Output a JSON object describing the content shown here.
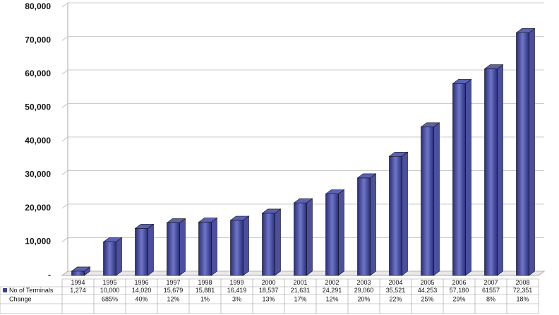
{
  "chart_data": {
    "type": "bar",
    "categories": [
      "1994",
      "1995",
      "1996",
      "1997",
      "1998",
      "1999",
      "2000",
      "2001",
      "2002",
      "2003",
      "2004",
      "2005",
      "2006",
      "2007",
      "2008"
    ],
    "series": [
      {
        "name": "No of Terminals",
        "color": "#3a3f98",
        "values": [
          1274,
          10000,
          14020,
          15679,
          15881,
          16419,
          18537,
          21631,
          24291,
          29060,
          35521,
          44253,
          57180,
          61557,
          72351
        ],
        "value_labels": [
          "1,274",
          "10,000",
          "14,020",
          "15,679",
          "15,881",
          "16,419",
          "18,537",
          "21,631",
          "24,291",
          "29,060",
          "35,521",
          "44,253",
          "57,180",
          "61557",
          "72,351"
        ]
      }
    ],
    "change": {
      "name": "Change",
      "values": [
        null,
        685,
        40,
        12,
        1,
        3,
        13,
        17,
        12,
        20,
        22,
        25,
        29,
        8,
        18
      ],
      "value_labels": [
        null,
        "685%",
        "40%",
        "12%",
        "1%",
        "3%",
        "13%",
        "17%",
        "12%",
        "20%",
        "22%",
        "25%",
        "29%",
        "8%",
        "18%"
      ]
    },
    "ylim": [
      0,
      80000
    ],
    "yticks": [
      {
        "value": 0,
        "label": "-"
      },
      {
        "value": 10000,
        "label": "10,000"
      },
      {
        "value": 20000,
        "label": "20,000"
      },
      {
        "value": 30000,
        "label": "30,000"
      },
      {
        "value": 40000,
        "label": "40,000"
      },
      {
        "value": 50000,
        "label": "50,000"
      },
      {
        "value": 60000,
        "label": "60,000"
      },
      {
        "value": 70000,
        "label": "70,000"
      },
      {
        "value": 80000,
        "label": "80,000"
      }
    ],
    "grid": true
  }
}
